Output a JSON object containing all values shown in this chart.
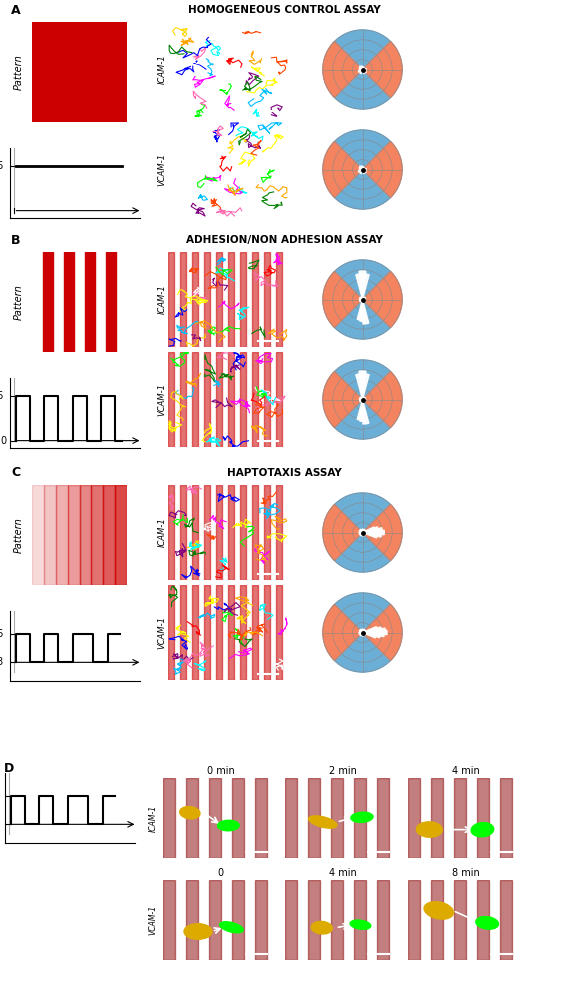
{
  "title_A": "HOMOGENEOUS CONTROL ASSAY",
  "title_B": "ADHESION/NON ADHESION ASSAY",
  "title_C": "HAPTOTAXIS ASSAY",
  "label_A": "A",
  "label_B": "B",
  "label_C": "C",
  "label_D": "D",
  "pattern_label": "Pattern",
  "icam_label": "ICAM-1",
  "vcam_label": "VCAM-1",
  "bg_color": "#ffffff",
  "red_color": "#cc0000",
  "dark_red": "#800000",
  "black": "#000000",
  "blue_sector": "#6baed6",
  "orange_sector": "#f4845f",
  "D_times_icam": [
    "0 min",
    "2 min",
    "4 min"
  ],
  "D_times_vcam": [
    "0",
    "4 min",
    "8 min"
  ]
}
